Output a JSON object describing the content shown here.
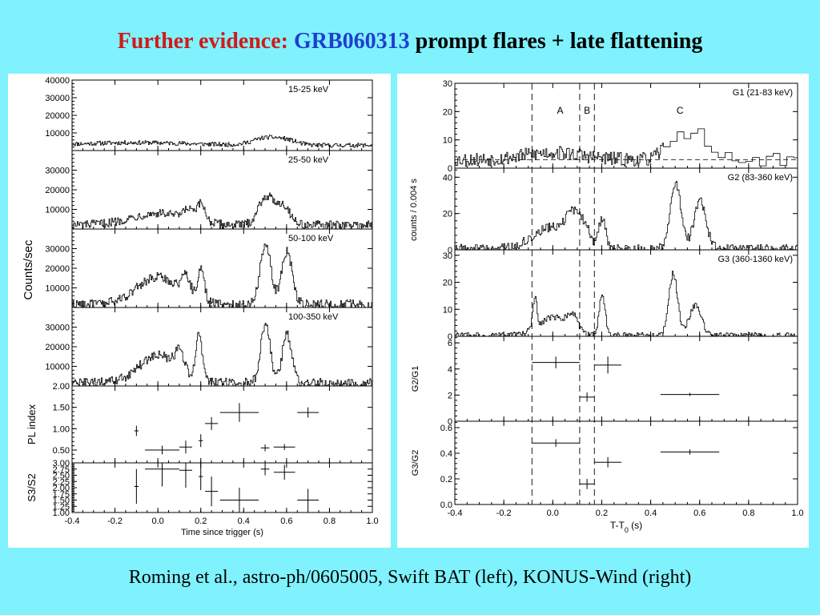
{
  "slide": {
    "title_part1": "Further evidence: ",
    "title_part2": "GRB060313",
    "title_part3": " prompt flares + late flattening",
    "caption": "Roming et al., astro-ph/0605005, Swift BAT (left), KONUS-Wind (right)",
    "colors": {
      "background": "#7ff2fd",
      "title_red": "#d11a1a",
      "title_blue": "#1f3fcf"
    }
  },
  "chart_data": [
    {
      "type": "line",
      "name": "Swift BAT light curves",
      "xlabel": "Time since trigger (s)",
      "xlim": [
        -0.4,
        1.0
      ],
      "xticks": [
        "-0.4",
        "-0.2",
        "0.0",
        "0.2",
        "0.4",
        "0.6",
        "0.8",
        "1.0"
      ],
      "shared_ylabel": "Counts/sec",
      "panels": [
        {
          "label": "15-25 keV",
          "ylim": [
            0,
            40000
          ],
          "ytick_values": [
            10000,
            20000,
            30000,
            40000
          ],
          "yticks": [
            "10000",
            "20000",
            "30000",
            "40000"
          ],
          "pulses": [
            {
              "t": -0.1,
              "w": 0.25,
              "a": 1500
            },
            {
              "t": 0.5,
              "w": 0.06,
              "a": 4000
            },
            {
              "t": 0.6,
              "w": 0.05,
              "a": 2500
            }
          ],
          "base": 3000,
          "noise": 1200
        },
        {
          "label": "25-50 keV",
          "ylim": [
            0,
            40000
          ],
          "ytick_values": [
            10000,
            20000,
            30000
          ],
          "yticks": [
            "10000",
            "20000",
            "30000"
          ],
          "pulses": [
            {
              "t": 0.0,
              "w": 0.13,
              "a": 6000
            },
            {
              "t": 0.14,
              "w": 0.02,
              "a": 5000
            },
            {
              "t": 0.2,
              "w": 0.02,
              "a": 9000
            },
            {
              "t": 0.5,
              "w": 0.035,
              "a": 14000
            },
            {
              "t": 0.58,
              "w": 0.035,
              "a": 10000
            }
          ],
          "base": 2000,
          "noise": 2200
        },
        {
          "label": "50-100 keV",
          "ylim": [
            0,
            40000
          ],
          "ytick_values": [
            10000,
            20000,
            30000
          ],
          "yticks": [
            "10000",
            "20000",
            "30000"
          ],
          "pulses": [
            {
              "t": 0.0,
              "w": 0.1,
              "a": 14000
            },
            {
              "t": 0.13,
              "w": 0.02,
              "a": 10000
            },
            {
              "t": 0.2,
              "w": 0.015,
              "a": 17000
            },
            {
              "t": 0.5,
              "w": 0.025,
              "a": 31000
            },
            {
              "t": 0.6,
              "w": 0.025,
              "a": 27000
            }
          ],
          "base": 1500,
          "noise": 2500
        },
        {
          "label": "100-350 keV",
          "ylim": [
            0,
            40000
          ],
          "ytick_values": [
            10000,
            20000,
            30000
          ],
          "yticks": [
            "10000",
            "20000",
            "30000"
          ],
          "pulses": [
            {
              "t": 0.0,
              "w": 0.09,
              "a": 14000
            },
            {
              "t": 0.1,
              "w": 0.02,
              "a": 10000
            },
            {
              "t": 0.19,
              "w": 0.015,
              "a": 24000
            },
            {
              "t": 0.5,
              "w": 0.022,
              "a": 30000
            },
            {
              "t": 0.6,
              "w": 0.022,
              "a": 25000
            }
          ],
          "base": 1500,
          "noise": 2500
        },
        {
          "label": "",
          "ylabel": "PL index",
          "ylim": [
            0.2,
            2.0
          ],
          "ytick_values": [
            0.5,
            1.0,
            1.5,
            2.0
          ],
          "yticks": [
            "0.50",
            "1.00",
            "1.50",
            "2.00"
          ],
          "points": [
            {
              "x": -0.1,
              "y": 0.95,
              "xerr": 0.01,
              "yerr": 0.12
            },
            {
              "x": 0.02,
              "y": 0.5,
              "xerr": 0.08,
              "yerr": 0.1
            },
            {
              "x": 0.13,
              "y": 0.57,
              "xerr": 0.03,
              "yerr": 0.15
            },
            {
              "x": 0.2,
              "y": 0.72,
              "xerr": 0.01,
              "yerr": 0.15
            },
            {
              "x": 0.25,
              "y": 1.12,
              "xerr": 0.03,
              "yerr": 0.15
            },
            {
              "x": 0.38,
              "y": 1.38,
              "xerr": 0.09,
              "yerr": 0.22
            },
            {
              "x": 0.5,
              "y": 0.55,
              "xerr": 0.02,
              "yerr": 0.08
            },
            {
              "x": 0.59,
              "y": 0.57,
              "xerr": 0.05,
              "yerr": 0.07
            },
            {
              "x": 0.7,
              "y": 1.38,
              "xerr": 0.05,
              "yerr": 0.12
            }
          ]
        },
        {
          "label": "",
          "ylabel": "S3/S2",
          "ylim": [
            1.0,
            3.0
          ],
          "ytick_values": [
            1.0,
            1.25,
            1.5,
            1.75,
            2.0,
            2.25,
            2.5,
            2.75,
            3.0
          ],
          "yticks": [
            "1.00",
            "1.25",
            "1.50",
            "1.75",
            "2.00",
            "2.25",
            "2.50",
            "2.75",
            "3.00"
          ],
          "points": [
            {
              "x": -0.1,
              "y": 2.05,
              "xerr": 0.01,
              "yerr": 0.7
            },
            {
              "x": 0.02,
              "y": 2.75,
              "xerr": 0.08,
              "yerr": 0.7
            },
            {
              "x": 0.13,
              "y": 2.7,
              "xerr": 0.03,
              "yerr": 0.7
            },
            {
              "x": 0.2,
              "y": 2.45,
              "xerr": 0.01,
              "yerr": 0.55
            },
            {
              "x": 0.25,
              "y": 1.85,
              "xerr": 0.03,
              "yerr": 0.6
            },
            {
              "x": 0.38,
              "y": 1.5,
              "xerr": 0.09,
              "yerr": 0.5
            },
            {
              "x": 0.5,
              "y": 2.75,
              "xerr": 0.02,
              "yerr": 0.25
            },
            {
              "x": 0.59,
              "y": 2.62,
              "xerr": 0.05,
              "yerr": 0.3
            },
            {
              "x": 0.7,
              "y": 1.5,
              "xerr": 0.05,
              "yerr": 0.45
            }
          ]
        }
      ]
    },
    {
      "type": "line",
      "name": "KONUS-Wind light curves",
      "xlabel_main": "T-T",
      "xlabel_sub": "0",
      "xlabel_unit": " (s)",
      "xlim": [
        -0.4,
        1.0
      ],
      "xticks": [
        "-0.4",
        "-0.2",
        "0.0",
        "0.2",
        "0.4",
        "0.6",
        "0.8",
        "1.0"
      ],
      "shared_ylabel": "counts / 0.004 s",
      "vlines": [
        -0.085,
        0.11,
        0.17
      ],
      "interval_labels": [
        {
          "text": "A",
          "x": 0.03
        },
        {
          "text": "B",
          "x": 0.14
        },
        {
          "text": "C",
          "x": 0.52
        }
      ],
      "panels": [
        {
          "label": "G1 (21-83 keV)",
          "ylim": [
            0,
            30
          ],
          "ytick_values": [
            0,
            10,
            20,
            30
          ],
          "yticks": [
            "0",
            "10",
            "20",
            "30"
          ],
          "baseline": 3,
          "pulses": [
            {
              "t": 0.0,
              "w": 0.12,
              "a": 2.5
            },
            {
              "t": 0.5,
              "w": 0.04,
              "a": 10
            },
            {
              "t": 0.6,
              "w": 0.04,
              "a": 8
            }
          ],
          "base": 3,
          "noise": 2.5,
          "coarse_after": 0.45
        },
        {
          "label": "G2 (83-360 keV)",
          "ylim": [
            0,
            45
          ],
          "ytick_values": [
            0,
            20,
            40
          ],
          "yticks": [
            "0",
            "20",
            "40"
          ],
          "baseline": 0,
          "pulses": [
            {
              "t": 0.0,
              "w": 0.08,
              "a": 12
            },
            {
              "t": 0.08,
              "w": 0.025,
              "a": 14
            },
            {
              "t": 0.13,
              "w": 0.02,
              "a": 10
            },
            {
              "t": 0.2,
              "w": 0.015,
              "a": 16
            },
            {
              "t": 0.5,
              "w": 0.022,
              "a": 36
            },
            {
              "t": 0.6,
              "w": 0.025,
              "a": 26
            }
          ],
          "base": 0.5,
          "noise": 2.5
        },
        {
          "label": "G3 (360-1360 keV)",
          "ylim": [
            0,
            32
          ],
          "ytick_values": [
            0,
            10,
            20,
            30
          ],
          "yticks": [
            "0",
            "10",
            "20",
            "30"
          ],
          "baseline": 0,
          "pulses": [
            {
              "t": -0.075,
              "w": 0.008,
              "a": 12
            },
            {
              "t": 0.0,
              "w": 0.06,
              "a": 7
            },
            {
              "t": 0.08,
              "w": 0.02,
              "a": 6
            },
            {
              "t": 0.2,
              "w": 0.012,
              "a": 16
            },
            {
              "t": 0.49,
              "w": 0.018,
              "a": 23
            },
            {
              "t": 0.58,
              "w": 0.025,
              "a": 11
            }
          ],
          "base": 0.2,
          "noise": 1.2
        },
        {
          "label": "",
          "ylabel": "G2/G1",
          "ylim": [
            0,
            6.5
          ],
          "ytick_values": [
            0,
            2,
            4,
            6
          ],
          "yticks": [
            "0",
            "2",
            "4",
            "6"
          ],
          "points": [
            {
              "x": 0.0125,
              "y": 4.5,
              "xerr": 0.0975,
              "yerr": 0.45
            },
            {
              "x": 0.14,
              "y": 1.85,
              "xerr": 0.03,
              "yerr": 0.35
            },
            {
              "x": 0.225,
              "y": 4.3,
              "xerr": 0.055,
              "yerr": 0.65
            },
            {
              "x": 0.56,
              "y": 2.05,
              "xerr": 0.12,
              "yerr": 0.12
            }
          ]
        },
        {
          "label": "",
          "ylabel": "G3/G2",
          "ylim": [
            0,
            0.65
          ],
          "ytick_values": [
            0,
            0.2,
            0.4,
            0.6
          ],
          "yticks": [
            "0.0",
            "0.2",
            "0.4",
            "0.6"
          ],
          "points": [
            {
              "x": 0.0125,
              "y": 0.48,
              "xerr": 0.0975,
              "yerr": 0.03
            },
            {
              "x": 0.14,
              "y": 0.16,
              "xerr": 0.03,
              "yerr": 0.04
            },
            {
              "x": 0.225,
              "y": 0.33,
              "xerr": 0.055,
              "yerr": 0.04
            },
            {
              "x": 0.56,
              "y": 0.41,
              "xerr": 0.12,
              "yerr": 0.02
            }
          ]
        }
      ]
    }
  ]
}
